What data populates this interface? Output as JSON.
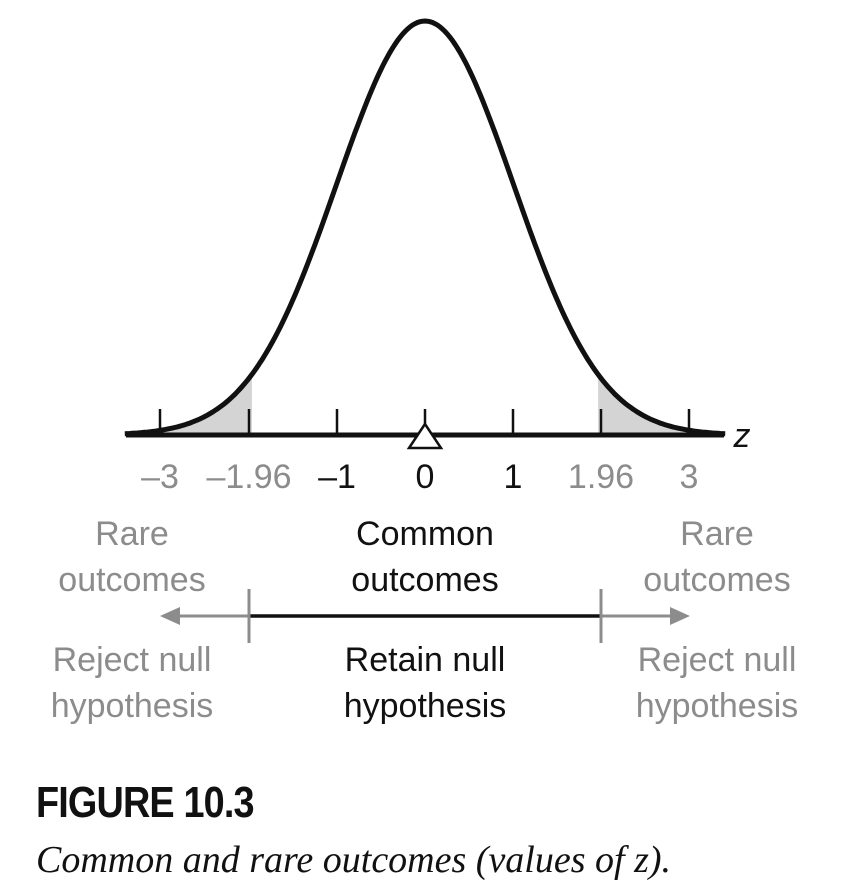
{
  "figure": {
    "axis_variable": "z",
    "ticks": [
      "–3",
      "–1.96",
      "–1",
      "0",
      "1",
      "1.96",
      "3"
    ],
    "regions": {
      "left_outcome": [
        "Rare",
        "outcomes"
      ],
      "center_outcome": [
        "Common",
        "outcomes"
      ],
      "right_outcome": [
        "Rare",
        "outcomes"
      ],
      "left_decision": [
        "Reject null",
        "hypothesis"
      ],
      "center_decision": [
        "Retain null",
        "hypothesis"
      ],
      "right_decision": [
        "Reject null",
        "hypothesis"
      ]
    },
    "colors": {
      "ink": "#111111",
      "muted": "#8c8c8c",
      "shade": "#d4d4d4"
    }
  },
  "caption": {
    "label": "FIGURE 10.3",
    "text": "Common and rare outcomes (values of z)."
  }
}
